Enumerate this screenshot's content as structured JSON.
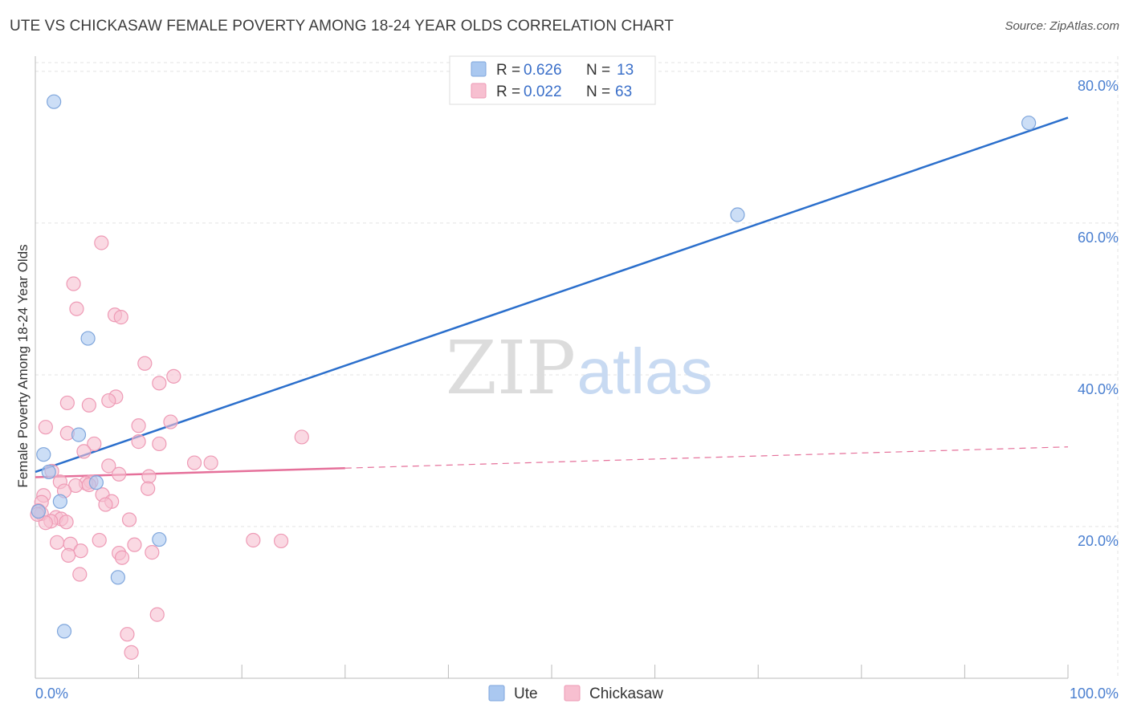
{
  "header": {
    "title": "UTE VS CHICKASAW FEMALE POVERTY AMONG 18-24 YEAR OLDS CORRELATION CHART",
    "source": "Source: ZipAtlas.com"
  },
  "watermark": {
    "zip": "ZIP",
    "atlas": "atlas"
  },
  "stats_legend": {
    "r_label": "R =",
    "n_label": "N =",
    "rows": [
      {
        "name": "Ute",
        "r": "0.626",
        "n": "13"
      },
      {
        "name": "Chickasaw",
        "r": "0.022",
        "n": "63"
      }
    ]
  },
  "colors": {
    "ute_fill": "#aac8f0",
    "ute_stroke": "#7fa6dc",
    "ute_line": "#2b6fcc",
    "chickasaw_fill": "#f7bfd0",
    "chickasaw_stroke": "#ee9ab5",
    "chickasaw_line": "#e5709a",
    "grid": "#e3e3e3",
    "axis_label": "#4a7fd0"
  },
  "chart_data": {
    "type": "scatter",
    "title": "UTE VS CHICKASAW FEMALE POVERTY AMONG 18-24 YEAR OLDS CORRELATION CHART",
    "xlabel": "",
    "ylabel": "Female Poverty Among 18-24 Year Olds",
    "xlim": [
      0,
      100
    ],
    "ylim": [
      0,
      82
    ],
    "x_tick_labels": [
      "0.0%",
      "100.0%"
    ],
    "y_ticks": [
      20,
      40,
      60,
      80
    ],
    "y_tick_labels": [
      "20.0%",
      "40.0%",
      "60.0%",
      "80.0%"
    ],
    "grid": true,
    "legend": [
      "Ute",
      "Chickasaw"
    ],
    "series": [
      {
        "name": "Ute",
        "points": [
          [
            1.8,
            76.0
          ],
          [
            96.2,
            73.2
          ],
          [
            68.0,
            61.1
          ],
          [
            5.1,
            44.8
          ],
          [
            4.2,
            32.1
          ],
          [
            0.8,
            29.5
          ],
          [
            1.3,
            27.2
          ],
          [
            5.9,
            25.8
          ],
          [
            2.4,
            23.3
          ],
          [
            0.3,
            22.0
          ],
          [
            12.0,
            18.3
          ],
          [
            8.0,
            13.3
          ],
          [
            2.8,
            6.2
          ]
        ],
        "trend": {
          "x0": 0,
          "y0": 27.2,
          "x1": 100,
          "y1": 73.9
        }
      },
      {
        "name": "Chickasaw",
        "points": [
          [
            6.4,
            57.4
          ],
          [
            3.7,
            52.0
          ],
          [
            4.0,
            48.7
          ],
          [
            7.7,
            47.9
          ],
          [
            8.3,
            47.6
          ],
          [
            10.6,
            41.5
          ],
          [
            13.4,
            39.8
          ],
          [
            12.0,
            38.9
          ],
          [
            7.8,
            37.1
          ],
          [
            3.1,
            36.3
          ],
          [
            5.2,
            36.0
          ],
          [
            7.1,
            36.6
          ],
          [
            13.1,
            33.8
          ],
          [
            1.0,
            33.1
          ],
          [
            10.0,
            33.3
          ],
          [
            3.1,
            32.3
          ],
          [
            25.8,
            31.8
          ],
          [
            10.0,
            31.2
          ],
          [
            12.0,
            30.9
          ],
          [
            5.7,
            30.9
          ],
          [
            4.7,
            29.9
          ],
          [
            7.1,
            28.0
          ],
          [
            15.4,
            28.4
          ],
          [
            17.0,
            28.4
          ],
          [
            1.6,
            27.3
          ],
          [
            8.1,
            26.9
          ],
          [
            11.0,
            26.6
          ],
          [
            2.4,
            25.9
          ],
          [
            5.4,
            25.9
          ],
          [
            4.9,
            25.7
          ],
          [
            3.9,
            25.4
          ],
          [
            5.2,
            25.5
          ],
          [
            10.9,
            25.0
          ],
          [
            2.8,
            24.7
          ],
          [
            0.8,
            24.1
          ],
          [
            6.5,
            24.2
          ],
          [
            0.6,
            23.2
          ],
          [
            7.4,
            23.3
          ],
          [
            6.8,
            22.9
          ],
          [
            0.3,
            22.1
          ],
          [
            0.6,
            21.7
          ],
          [
            2.0,
            21.2
          ],
          [
            2.5,
            21.0
          ],
          [
            1.5,
            20.7
          ],
          [
            1.0,
            20.5
          ],
          [
            3.0,
            20.6
          ],
          [
            9.1,
            20.9
          ],
          [
            6.2,
            18.2
          ],
          [
            21.1,
            18.2
          ],
          [
            23.8,
            18.1
          ],
          [
            2.1,
            17.9
          ],
          [
            3.4,
            17.7
          ],
          [
            9.6,
            17.6
          ],
          [
            4.4,
            16.8
          ],
          [
            8.1,
            16.5
          ],
          [
            11.3,
            16.6
          ],
          [
            3.2,
            16.2
          ],
          [
            8.4,
            15.9
          ],
          [
            4.3,
            13.7
          ],
          [
            11.8,
            8.4
          ],
          [
            8.9,
            5.8
          ],
          [
            9.3,
            3.4
          ],
          [
            0.2,
            21.6
          ]
        ],
        "trend": {
          "x0": 0,
          "y0": 26.5,
          "x1": 100,
          "y1": 30.5,
          "solid_until_x": 30
        }
      }
    ]
  },
  "bottom_legend": {
    "items": [
      "Ute",
      "Chickasaw"
    ]
  }
}
